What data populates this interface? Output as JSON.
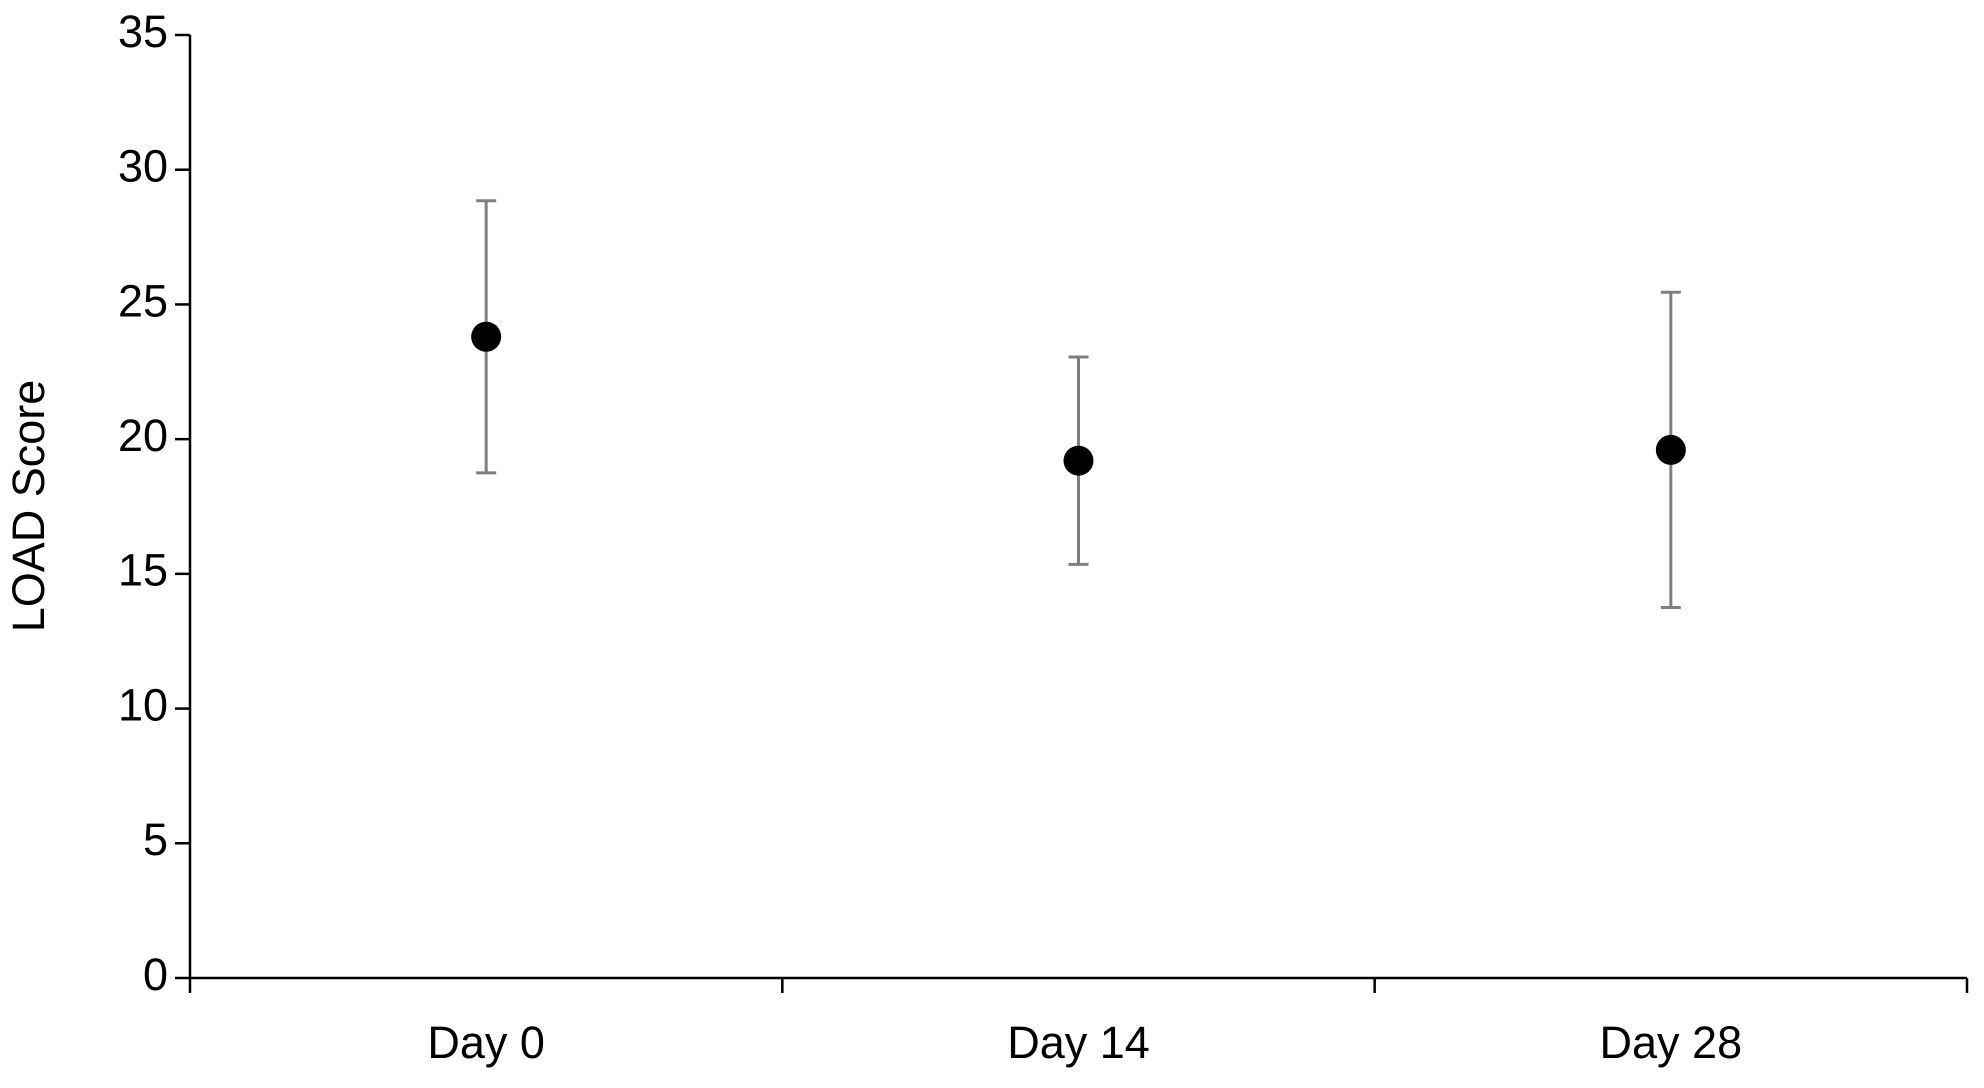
{
  "chart_data": {
    "type": "dot",
    "y_label": "LOAD Score",
    "categories": [
      "Day 0",
      "Day 14",
      "Day 28"
    ],
    "series": [
      {
        "values": [
          23.8,
          19.2,
          19.6
        ],
        "errors": [
          5.05,
          3.85,
          5.85
        ],
        "color": "#000000",
        "error_color": "#7f7f7f"
      }
    ],
    "ylim": [
      0,
      35
    ],
    "yticks": [
      0,
      5,
      10,
      15,
      20,
      25,
      30,
      35
    ],
    "grid": false
  }
}
